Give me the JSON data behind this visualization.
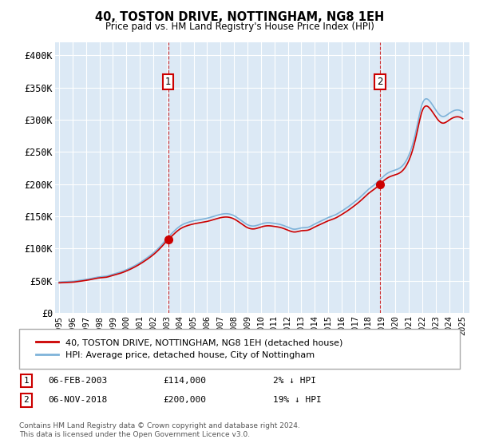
{
  "title": "40, TOSTON DRIVE, NOTTINGHAM, NG8 1EH",
  "subtitle": "Price paid vs. HM Land Registry's House Price Index (HPI)",
  "background_color": "#ffffff",
  "plot_bg_color": "#dce9f5",
  "grid_color": "#ffffff",
  "sale_color": "#cc0000",
  "hpi_color": "#7fb3d9",
  "ylim": [
    0,
    420000
  ],
  "yticks": [
    0,
    50000,
    100000,
    150000,
    200000,
    250000,
    300000,
    350000,
    400000
  ],
  "ytick_labels": [
    "£0",
    "£50K",
    "£100K",
    "£150K",
    "£200K",
    "£250K",
    "£300K",
    "£350K",
    "£400K"
  ],
  "sale_points": [
    {
      "year": 2003.1,
      "price": 114000,
      "label": "1"
    },
    {
      "year": 2018.85,
      "price": 200000,
      "label": "2"
    }
  ],
  "annotation_box_color": "#cc0000",
  "legend_entries": [
    {
      "label": "40, TOSTON DRIVE, NOTTINGHAM, NG8 1EH (detached house)",
      "color": "#cc0000"
    },
    {
      "label": "HPI: Average price, detached house, City of Nottingham",
      "color": "#7fb3d9"
    }
  ],
  "footnote_rows": [
    {
      "num": "1",
      "date": "06-FEB-2003",
      "price": "£114,000",
      "hpi": "2% ↓ HPI"
    },
    {
      "num": "2",
      "date": "06-NOV-2018",
      "price": "£200,000",
      "hpi": "19% ↓ HPI"
    }
  ],
  "copyright": "Contains HM Land Registry data © Crown copyright and database right 2024.\nThis data is licensed under the Open Government Licence v3.0."
}
